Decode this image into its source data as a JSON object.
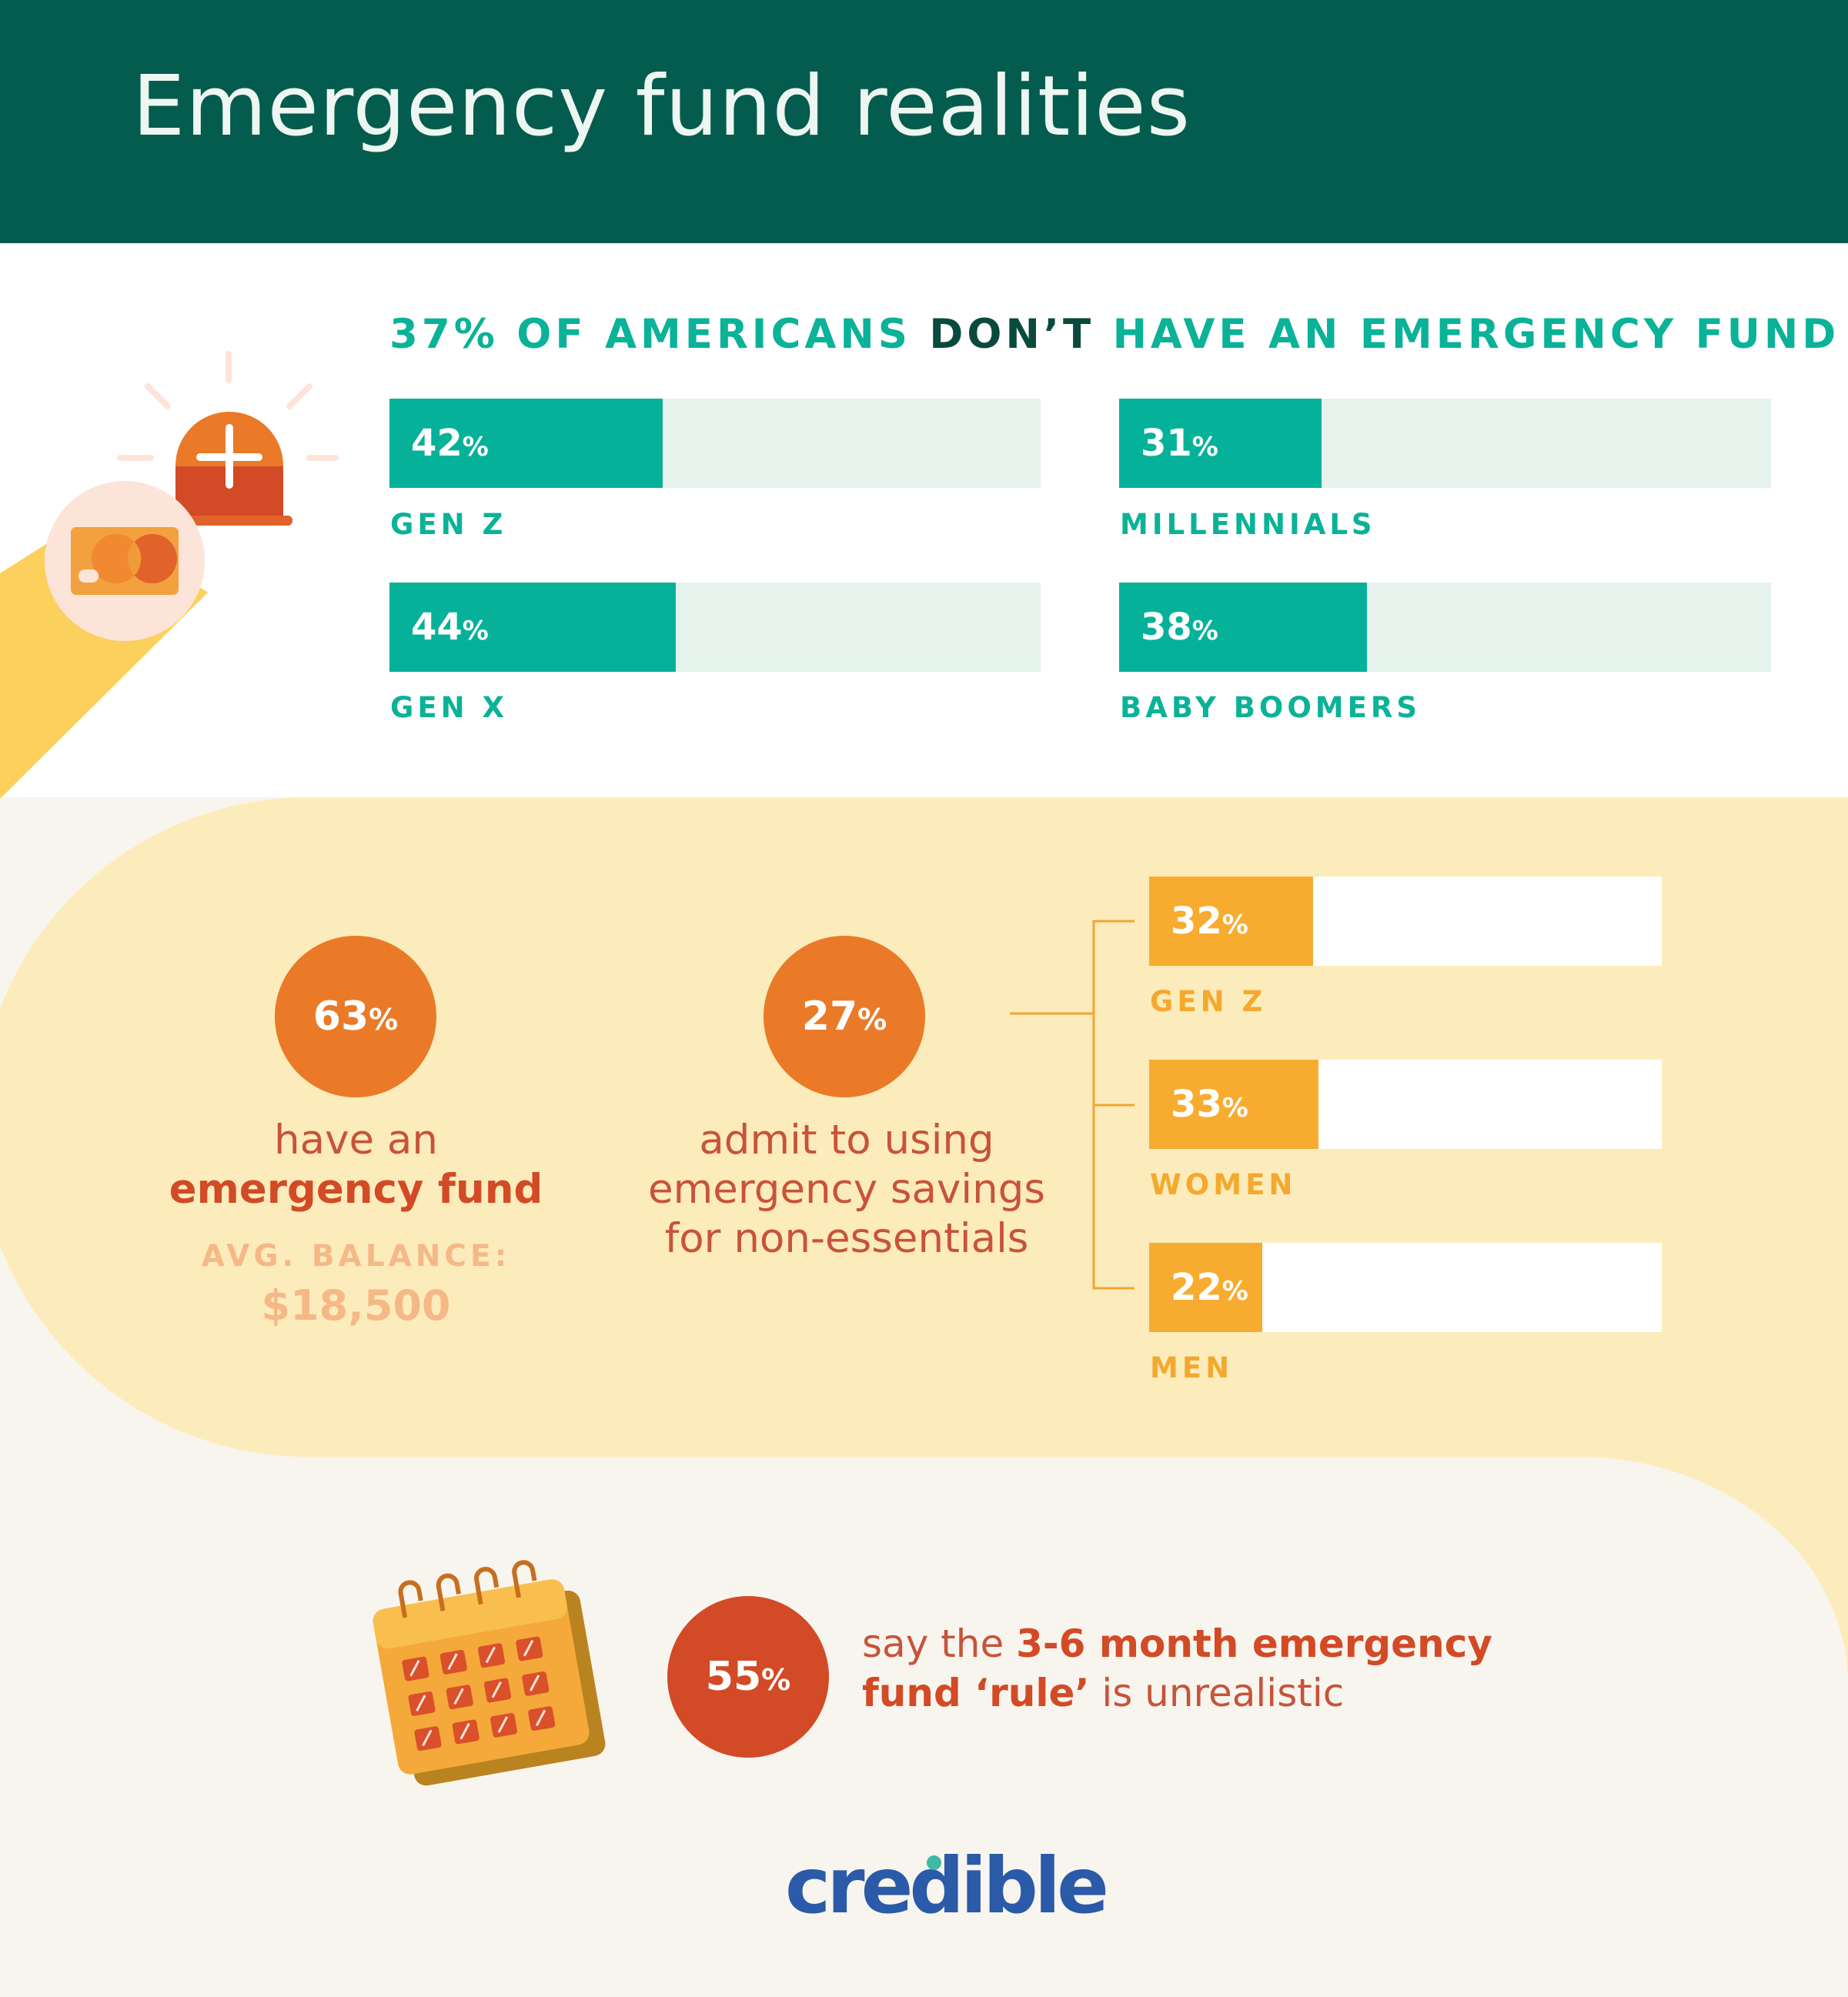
{
  "title": "Emergency fund realities",
  "headline": {
    "part1": "37% OF AMERICANS ",
    "part2": "DON’T",
    "part3": " HAVE AN EMERGENCY FUND"
  },
  "chart_data": [
    {
      "type": "bar",
      "title": "37% OF AMERICANS DON’T HAVE AN EMERGENCY FUND",
      "categories": [
        "GEN Z",
        "MILLENNIALS",
        "GEN X",
        "BABY BOOMERS"
      ],
      "values": [
        42,
        31,
        44,
        38
      ],
      "value_labels": [
        "42",
        "31",
        "44",
        "38"
      ],
      "unit": "%",
      "ylim": [
        0,
        100
      ]
    },
    {
      "type": "bar",
      "title": "admit to using emergency savings for non-essentials",
      "categories": [
        "GEN Z",
        "WOMEN",
        "MEN"
      ],
      "values": [
        32,
        33,
        22
      ],
      "value_labels": [
        "32",
        "33",
        "22"
      ],
      "unit": "%",
      "ylim": [
        0,
        100
      ]
    }
  ],
  "stats": {
    "have_fund": {
      "value": "63",
      "unit": "%",
      "text_line1": "have an",
      "text_line2": "emergency fund",
      "avg_label": "AVG. BALANCE:",
      "avg_value": "$18,500"
    },
    "non_essentials": {
      "value": "27",
      "unit": "%",
      "line1": "admit to using",
      "line2": "emergency savings",
      "line3": "for non-essentials"
    },
    "rule": {
      "value": "55",
      "unit": "%",
      "t1": "say the ",
      "t2": "3-6 month emergency",
      "t3": "fund ‘rule’",
      "t4": " is unrealistic"
    }
  },
  "logo": "credible",
  "colors": {
    "header": "#035c4d",
    "teal": "#05b299",
    "orange_bar": "#f8ac2f",
    "orange_circle": "#ea7a28",
    "red_circle": "#d24a26",
    "band": "#fdecbb",
    "cream": "#f8f5ee"
  },
  "icons": {
    "siren": "siren-icon",
    "card": "credit-card-icon",
    "calendar": "calendar-icon"
  }
}
